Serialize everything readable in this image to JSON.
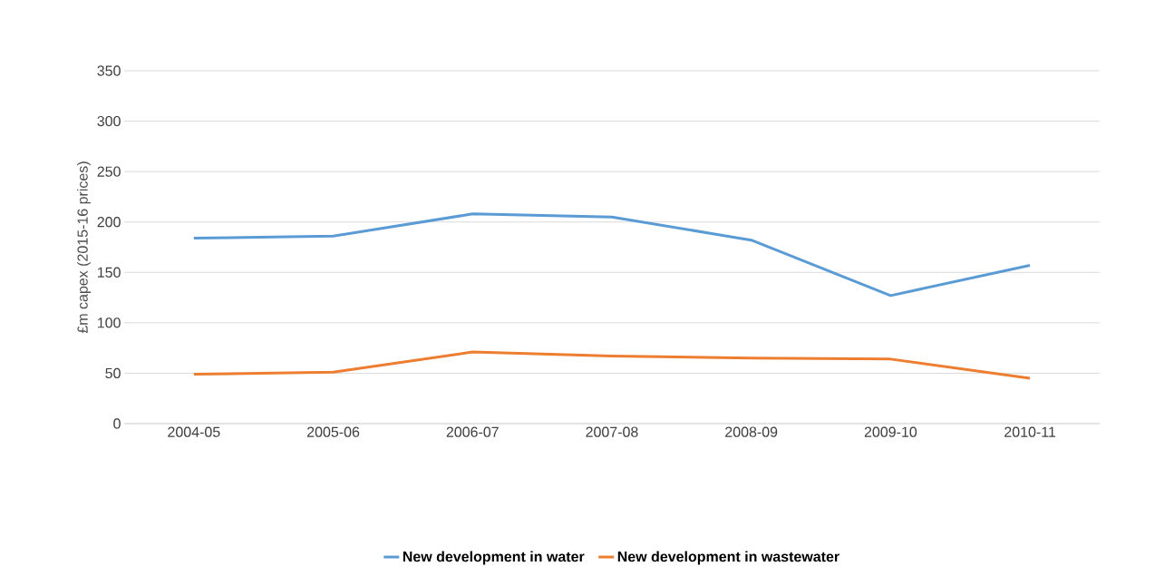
{
  "chart_data": {
    "type": "line",
    "ylabel": "£m capex (2015-16 prices)",
    "categories": [
      "2004-05",
      "2005-06",
      "2006-07",
      "2007-08",
      "2008-09",
      "2009-10",
      "2010-11"
    ],
    "series": [
      {
        "name": "New development in water",
        "color": "#5b9bd5",
        "values": [
          184,
          186,
          208,
          205,
          182,
          127,
          157
        ]
      },
      {
        "name": "New development in wastewater",
        "color": "#ed7d31",
        "values": [
          49,
          51,
          71,
          67,
          65,
          64,
          45
        ]
      }
    ],
    "ylim": [
      0,
      350
    ],
    "yticks": [
      0,
      50,
      100,
      150,
      200,
      250,
      300,
      350
    ],
    "grid": "y",
    "legend": "bottom",
    "marker": "none",
    "line_style": "solid"
  }
}
